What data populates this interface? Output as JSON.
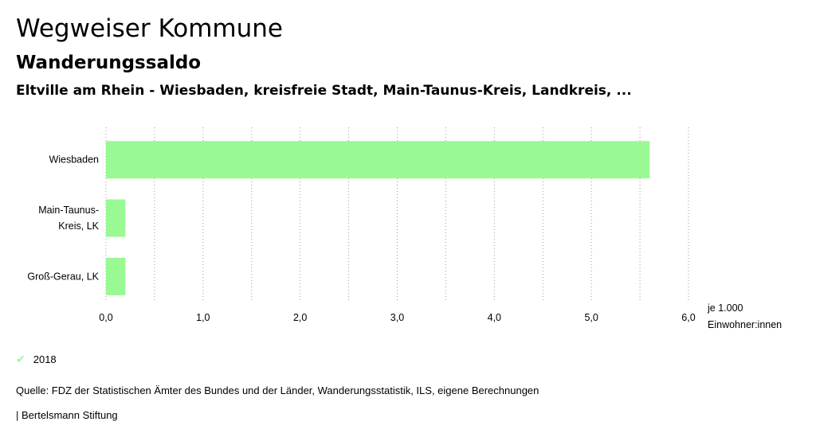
{
  "header": {
    "title": "Wegweiser Kommune",
    "subtitle": "Wanderungssaldo",
    "region": "Eltville am Rhein - Wiesbaden, kreisfreie Stadt, Main-Taunus-Kreis, Landkreis, ..."
  },
  "chart_data": {
    "type": "bar",
    "orientation": "horizontal",
    "categories": [
      [
        "Wiesbaden"
      ],
      [
        "Main-Taunus-",
        "Kreis, LK"
      ],
      [
        "Groß-Gerau, LK"
      ]
    ],
    "series": [
      {
        "name": "2018",
        "values": [
          5.6,
          0.2,
          0.2
        ],
        "color": "#99f993"
      }
    ],
    "xlim": [
      0,
      6
    ],
    "xticks": [
      "0,0",
      "1,0",
      "2,0",
      "3,0",
      "4,0",
      "5,0",
      "6,0"
    ],
    "unit_label": [
      "je 1.000",
      "Einwohner:innen"
    ],
    "grid": "vertical dotted"
  },
  "legend": {
    "label": "2018",
    "color": "#99f993"
  },
  "footer": {
    "source": "Quelle: FDZ der Statistischen Ämter des Bundes und der Länder, Wanderungsstatistik, ILS, eigene Berechnungen",
    "credit": "| Bertelsmann Stiftung"
  }
}
